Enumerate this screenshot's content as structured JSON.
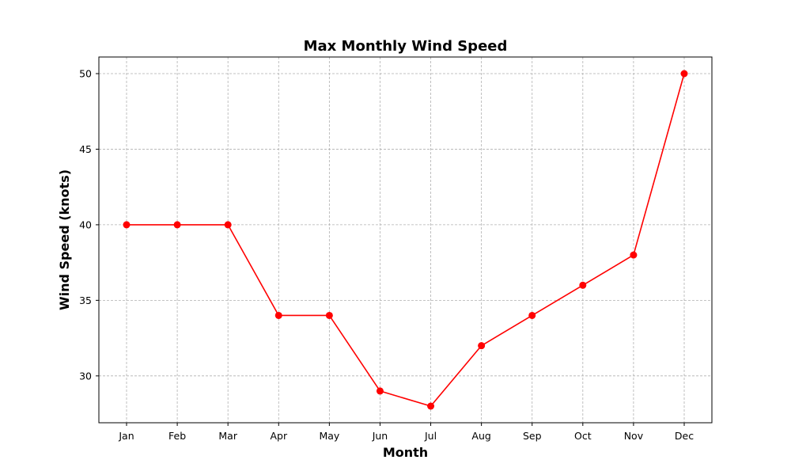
{
  "chart_data": {
    "type": "line",
    "title": "Max Monthly Wind Speed",
    "xlabel": "Month",
    "ylabel": "Wind Speed (knots)",
    "categories": [
      "Jan",
      "Feb",
      "Mar",
      "Apr",
      "May",
      "Jun",
      "Jul",
      "Aug",
      "Sep",
      "Oct",
      "Nov",
      "Dec"
    ],
    "series": [
      {
        "values": [
          40,
          40,
          40,
          34,
          34,
          29,
          28,
          32,
          34,
          36,
          38,
          50
        ],
        "color": "#ff0000",
        "marker": "circle"
      }
    ],
    "ylim": [
      26.9,
      51.1
    ],
    "yticks": [
      30,
      35,
      40,
      45,
      50
    ],
    "grid": true,
    "legend": false
  }
}
